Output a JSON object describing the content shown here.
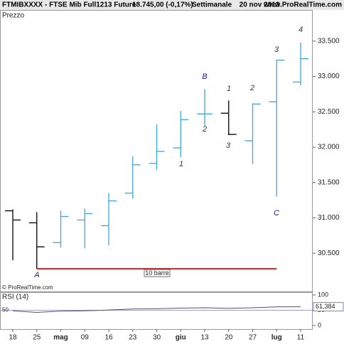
{
  "header": {
    "symbol": "FTMIBXXXX - FTSE Mib Full1213 Future",
    "price": "18.745,00 (-0,17%)",
    "period": "Settimanale",
    "date": "20 nov 2013",
    "site": "www.ProRealTime.com"
  },
  "chart_data": {
    "type": "ohlc",
    "y_label": "Prezzo",
    "credit": "© ProRealTime.com",
    "categories": [
      "18",
      "25",
      "mag",
      "09",
      "16",
      "23",
      "30",
      "giu",
      "13",
      "20",
      "27",
      "lug",
      "11"
    ],
    "open": [
      31100,
      30930,
      30650,
      30970,
      30890,
      31350,
      31770,
      31990,
      32470,
      32480,
      32090,
      32640,
      32920
    ],
    "high": [
      31120,
      31080,
      31100,
      31130,
      31350,
      31870,
      32320,
      32510,
      32820,
      32660,
      32620,
      33240,
      33480
    ],
    "low": [
      30400,
      30280,
      30580,
      30570,
      30610,
      31270,
      31680,
      31860,
      32300,
      32170,
      31760,
      31300,
      32870
    ],
    "close": [
      30970,
      30590,
      31020,
      31060,
      31240,
      31750,
      31940,
      32390,
      32470,
      32180,
      32610,
      33230,
      33250
    ],
    "up_color": "#3aa8e0",
    "down_color": "#000000",
    "ylim": [
      29960,
      33940
    ],
    "yticks": [
      {
        "value": 30500,
        "label": "30.500"
      },
      {
        "value": 31000,
        "label": "31.000"
      },
      {
        "value": 31500,
        "label": "31.500"
      },
      {
        "value": 32000,
        "label": "32.000"
      },
      {
        "value": 32500,
        "label": "32.500"
      },
      {
        "value": 33000,
        "label": "33.000"
      },
      {
        "value": 33500,
        "label": "33.500"
      }
    ],
    "annotations": [
      "A",
      "1",
      "B",
      "2",
      "1",
      "3",
      "2",
      "3",
      "C",
      "4"
    ],
    "hline": {
      "value": 30280,
      "label": "10 barre",
      "color": "#e02020"
    },
    "rsi": {
      "label": "RSI (14)",
      "values": [
        48,
        43,
        47,
        48,
        51,
        54,
        55,
        57,
        58,
        56,
        58,
        61,
        61.384
      ],
      "value_label": "61,384",
      "ylim": [
        0,
        100
      ],
      "yticks": [
        0,
        50,
        100
      ]
    }
  }
}
